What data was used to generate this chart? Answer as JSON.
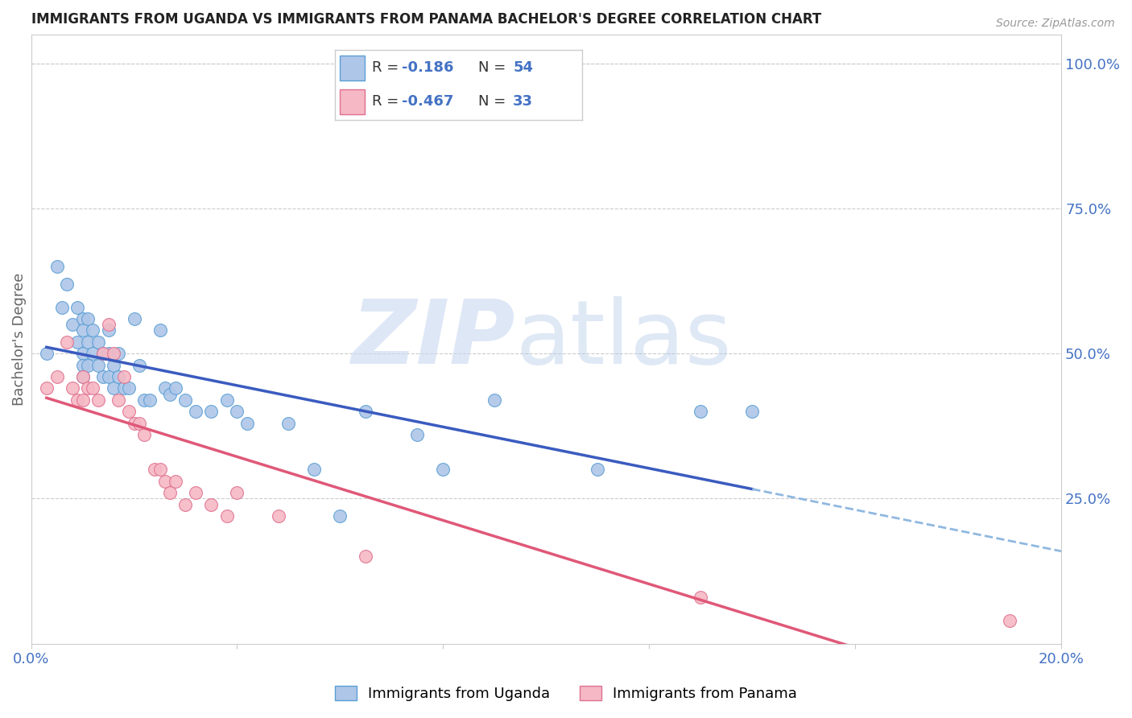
{
  "title": "IMMIGRANTS FROM UGANDA VS IMMIGRANTS FROM PANAMA BACHELOR'S DEGREE CORRELATION CHART",
  "source": "Source: ZipAtlas.com",
  "ylabel": "Bachelor's Degree",
  "right_ytick_labels": [
    "100.0%",
    "75.0%",
    "50.0%",
    "25.0%"
  ],
  "right_ytick_values": [
    1.0,
    0.75,
    0.5,
    0.25
  ],
  "xlim": [
    0.0,
    0.2
  ],
  "ylim": [
    0.0,
    1.05
  ],
  "uganda_color": "#aec6e8",
  "uganda_edge": "#5a9fd4",
  "panama_color": "#f5b8c4",
  "panama_edge": "#e07090",
  "regression_uganda_color": "#3a5bbf",
  "regression_panama_color": "#e05878",
  "dashed_line_color": "#90b8e0",
  "legend_R_uganda": "-0.186",
  "legend_N_uganda": "54",
  "legend_R_panama": "-0.467",
  "legend_N_panama": "33",
  "label_color": "#4472c4",
  "uganda_x": [
    0.003,
    0.005,
    0.006,
    0.007,
    0.008,
    0.009,
    0.009,
    0.01,
    0.01,
    0.01,
    0.01,
    0.01,
    0.011,
    0.011,
    0.011,
    0.012,
    0.012,
    0.013,
    0.013,
    0.014,
    0.014,
    0.015,
    0.015,
    0.015,
    0.016,
    0.016,
    0.017,
    0.017,
    0.018,
    0.019,
    0.02,
    0.021,
    0.022,
    0.023,
    0.025,
    0.026,
    0.027,
    0.028,
    0.03,
    0.032,
    0.035,
    0.038,
    0.04,
    0.042,
    0.05,
    0.055,
    0.06,
    0.065,
    0.075,
    0.08,
    0.09,
    0.11,
    0.13,
    0.14
  ],
  "uganda_y": [
    0.5,
    0.65,
    0.58,
    0.62,
    0.55,
    0.58,
    0.52,
    0.56,
    0.54,
    0.5,
    0.48,
    0.46,
    0.56,
    0.52,
    0.48,
    0.54,
    0.5,
    0.52,
    0.48,
    0.5,
    0.46,
    0.54,
    0.5,
    0.46,
    0.48,
    0.44,
    0.5,
    0.46,
    0.44,
    0.44,
    0.56,
    0.48,
    0.42,
    0.42,
    0.54,
    0.44,
    0.43,
    0.44,
    0.42,
    0.4,
    0.4,
    0.42,
    0.4,
    0.38,
    0.38,
    0.3,
    0.22,
    0.4,
    0.36,
    0.3,
    0.42,
    0.3,
    0.4,
    0.4
  ],
  "panama_x": [
    0.003,
    0.005,
    0.007,
    0.008,
    0.009,
    0.01,
    0.01,
    0.011,
    0.012,
    0.013,
    0.014,
    0.015,
    0.016,
    0.017,
    0.018,
    0.019,
    0.02,
    0.021,
    0.022,
    0.024,
    0.025,
    0.026,
    0.027,
    0.028,
    0.03,
    0.032,
    0.035,
    0.038,
    0.04,
    0.048,
    0.065,
    0.13,
    0.19
  ],
  "panama_y": [
    0.44,
    0.46,
    0.52,
    0.44,
    0.42,
    0.46,
    0.42,
    0.44,
    0.44,
    0.42,
    0.5,
    0.55,
    0.5,
    0.42,
    0.46,
    0.4,
    0.38,
    0.38,
    0.36,
    0.3,
    0.3,
    0.28,
    0.26,
    0.28,
    0.24,
    0.26,
    0.24,
    0.22,
    0.26,
    0.22,
    0.15,
    0.08,
    0.04
  ]
}
